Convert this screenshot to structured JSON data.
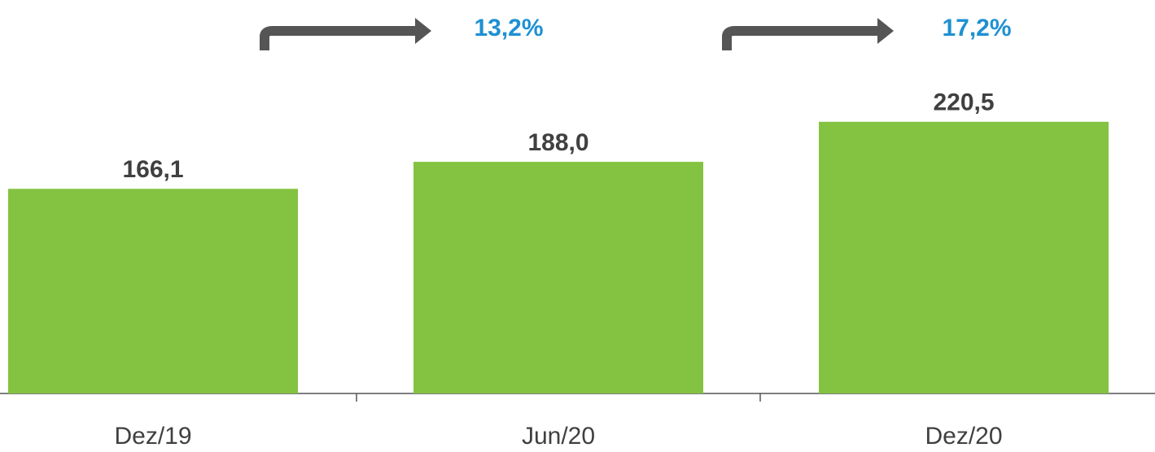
{
  "chart_data": {
    "type": "bar",
    "categories": [
      "Dez/19",
      "Jun/20",
      "Dez/20"
    ],
    "values": [
      166.1,
      188.0,
      220.5
    ],
    "value_labels": [
      "166,1",
      "188,0",
      "220,5"
    ],
    "color": "#84c341",
    "ylim": [
      0,
      225
    ],
    "annotations": [
      "13,2%",
      "17,2%"
    ]
  }
}
